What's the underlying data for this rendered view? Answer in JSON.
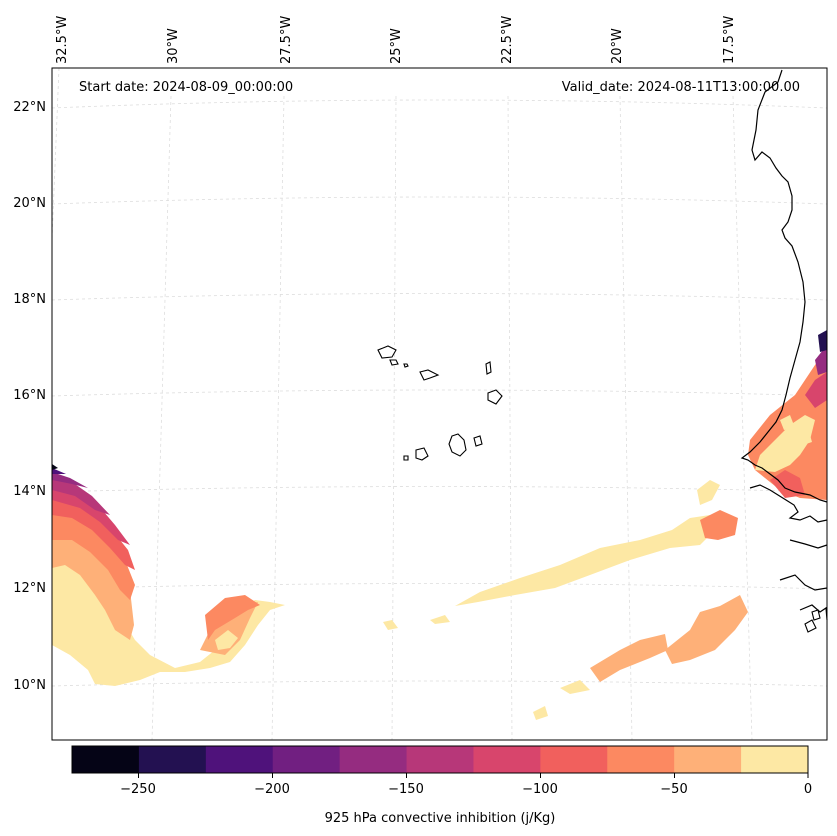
{
  "map": {
    "start_date": "Start date: 2024-08-09_00:00:00",
    "valid_date": "Valid_date: 2024-08-11T13:00:00.00",
    "lon_labels": [
      "32.5°W",
      "30°W",
      "27.5°W",
      "25°W",
      "22.5°W",
      "20°W",
      "17.5°W"
    ],
    "lat_labels": [
      "22°N",
      "20°N",
      "18°N",
      "16°N",
      "14°N",
      "12°N",
      "10°N"
    ]
  },
  "colorbar": {
    "label": "925 hPa convective inhibition (j/Kg)",
    "tick_labels": [
      "−250",
      "−200",
      "−150",
      "−100",
      "−50",
      "0"
    ],
    "colors": [
      "#050416",
      "#231151",
      "#4f127b",
      "#711f81",
      "#952c80",
      "#b73779",
      "#d8456c",
      "#f1605d",
      "#fc8961",
      "#feb078",
      "#fde8a4"
    ]
  },
  "colors": {
    "frame": "#000000",
    "grid": "#dddddd",
    "coast": "#000000"
  }
}
